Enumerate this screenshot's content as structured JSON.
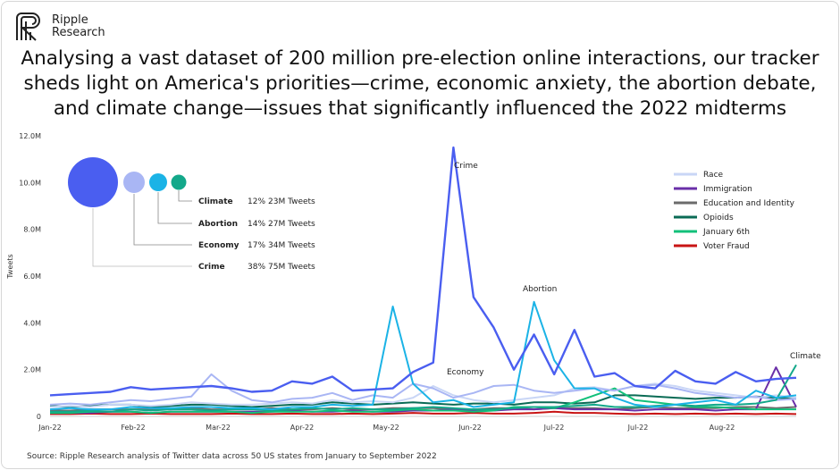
{
  "brand": {
    "line1": "Ripple",
    "line2": "Research"
  },
  "headline": "Analysing a vast dataset of 200 million pre-election online interactions, our tracker sheds light on America's priorities—crime, economic anxiety, the abortion debate, and climate change—issues that significantly influenced the 2022 midterms",
  "source": "Source: Ripple Research analysis of Twitter data across 50 US states from January to September 2022",
  "colors": {
    "crime": "#4a5ef0",
    "economy": "#a9b6f4",
    "abortion": "#1bb3e6",
    "climate": "#13a88a",
    "race": "#c9d6f6",
    "immigration": "#6a2fa8",
    "education": "#6b6b6b",
    "opioids": "#0a6b55",
    "january6": "#12c07a",
    "voterfraud": "#c81414"
  },
  "bubbles": [
    {
      "topic": "Climate",
      "pct": "12%",
      "tweets": "23M Tweets"
    },
    {
      "topic": "Abortion",
      "pct": "14%",
      "tweets": "27M Tweets"
    },
    {
      "topic": "Economy",
      "pct": "17%",
      "tweets": "34M Tweets"
    },
    {
      "topic": "Crime",
      "pct": "38%",
      "tweets": "75M Tweets"
    }
  ],
  "chart_data": {
    "type": "line",
    "ylabel": "Tweets",
    "xlabel": "",
    "ylim": [
      0,
      12000000
    ],
    "yticks": [
      "0",
      "2.0M",
      "4.0M",
      "6.0M",
      "8.0M",
      "10.0M",
      "12.0M"
    ],
    "xticks": [
      "Jan-22",
      "Feb-22",
      "Mar-22",
      "Apr-22",
      "May-22",
      "Jun-22",
      "Jul-22",
      "Jul-22",
      "Aug-22"
    ],
    "legend_position": "right",
    "annotations": [
      "Crime",
      "Abortion",
      "Economy",
      "Climate"
    ],
    "n_points": 38,
    "series": [
      {
        "name": "Crime",
        "key": "crime",
        "values": [
          0.9,
          0.95,
          1.0,
          1.05,
          1.25,
          1.15,
          1.2,
          1.25,
          1.3,
          1.2,
          1.05,
          1.1,
          1.5,
          1.4,
          1.7,
          1.1,
          1.15,
          1.2,
          1.9,
          2.3,
          11.5,
          5.1,
          3.8,
          2.0,
          3.5,
          1.8,
          3.7,
          1.7,
          1.85,
          1.3,
          1.2,
          1.95,
          1.5,
          1.4,
          1.9,
          1.5,
          1.6,
          1.65
        ]
      },
      {
        "name": "Economy",
        "key": "economy",
        "values": [
          0.5,
          0.55,
          0.5,
          0.6,
          0.7,
          0.65,
          0.75,
          0.85,
          1.8,
          1.1,
          0.7,
          0.6,
          0.75,
          0.8,
          1.0,
          0.7,
          0.9,
          0.8,
          1.4,
          1.2,
          0.8,
          1.0,
          1.3,
          1.35,
          1.1,
          1.0,
          1.1,
          1.2,
          1.1,
          1.3,
          1.35,
          1.2,
          1.0,
          0.9,
          0.8,
          0.85,
          0.7,
          0.75
        ]
      },
      {
        "name": "Abortion",
        "key": "abortion",
        "values": [
          0.3,
          0.35,
          0.3,
          0.3,
          0.4,
          0.35,
          0.35,
          0.4,
          0.4,
          0.35,
          0.35,
          0.3,
          0.4,
          0.4,
          0.5,
          0.45,
          0.5,
          4.7,
          1.4,
          0.6,
          0.7,
          0.4,
          0.5,
          0.6,
          4.9,
          2.4,
          1.2,
          1.2,
          0.8,
          0.5,
          0.4,
          0.5,
          0.6,
          0.7,
          0.5,
          1.1,
          0.8,
          0.9
        ]
      },
      {
        "name": "Climate",
        "key": "climate",
        "values": [
          0.2,
          0.2,
          0.25,
          0.2,
          0.3,
          0.25,
          0.3,
          0.3,
          0.25,
          0.3,
          0.3,
          0.25,
          0.3,
          0.35,
          0.3,
          0.35,
          0.3,
          0.3,
          0.35,
          0.4,
          0.35,
          0.3,
          0.3,
          0.35,
          0.4,
          0.4,
          0.45,
          0.5,
          0.4,
          0.4,
          0.45,
          0.5,
          0.45,
          0.5,
          0.5,
          0.55,
          0.7,
          2.2
        ]
      },
      {
        "name": "Race",
        "key": "race",
        "values": [
          0.4,
          0.45,
          0.4,
          0.5,
          0.5,
          0.45,
          0.5,
          0.6,
          0.55,
          0.5,
          0.5,
          0.55,
          0.6,
          0.55,
          0.7,
          0.6,
          0.65,
          0.6,
          0.8,
          1.3,
          0.9,
          0.7,
          0.6,
          0.7,
          0.8,
          0.9,
          1.2,
          1.25,
          1.1,
          1.3,
          1.4,
          1.3,
          1.1,
          1.0,
          0.9,
          0.8,
          0.9,
          0.8
        ]
      },
      {
        "name": "Immigration",
        "key": "immigration",
        "values": [
          0.15,
          0.15,
          0.15,
          0.2,
          0.2,
          0.15,
          0.2,
          0.2,
          0.2,
          0.2,
          0.2,
          0.2,
          0.25,
          0.2,
          0.2,
          0.25,
          0.2,
          0.2,
          0.25,
          0.25,
          0.3,
          0.25,
          0.25,
          0.3,
          0.3,
          0.35,
          0.3,
          0.3,
          0.3,
          0.25,
          0.3,
          0.3,
          0.3,
          0.25,
          0.3,
          0.3,
          2.1,
          0.4
        ]
      },
      {
        "name": "Education and Identity",
        "key": "education",
        "values": [
          0.25,
          0.25,
          0.3,
          0.3,
          0.3,
          0.3,
          0.3,
          0.35,
          0.3,
          0.3,
          0.3,
          0.35,
          0.3,
          0.3,
          0.35,
          0.3,
          0.3,
          0.35,
          0.35,
          0.35,
          0.3,
          0.3,
          0.35,
          0.35,
          0.3,
          0.35,
          0.35,
          0.35,
          0.3,
          0.35,
          0.4,
          0.35,
          0.35,
          0.35,
          0.4,
          0.4,
          0.35,
          0.4
        ]
      },
      {
        "name": "Opioids",
        "key": "opioids",
        "values": [
          0.45,
          0.4,
          0.45,
          0.5,
          0.5,
          0.4,
          0.45,
          0.5,
          0.5,
          0.45,
          0.4,
          0.45,
          0.5,
          0.5,
          0.6,
          0.55,
          0.5,
          0.55,
          0.6,
          0.55,
          0.5,
          0.55,
          0.55,
          0.5,
          0.6,
          0.6,
          0.55,
          0.6,
          0.9,
          0.9,
          0.85,
          0.8,
          0.75,
          0.8,
          0.8,
          0.85,
          0.8,
          0.75
        ]
      },
      {
        "name": "January 6th",
        "key": "january6",
        "values": [
          0.15,
          0.15,
          0.2,
          0.2,
          0.2,
          0.15,
          0.2,
          0.2,
          0.2,
          0.2,
          0.15,
          0.2,
          0.2,
          0.2,
          0.25,
          0.2,
          0.2,
          0.25,
          0.3,
          0.25,
          0.25,
          0.2,
          0.25,
          0.4,
          0.4,
          0.35,
          0.6,
          0.9,
          1.2,
          0.7,
          0.6,
          0.5,
          0.4,
          0.4,
          0.35,
          0.3,
          0.3,
          0.3
        ]
      },
      {
        "name": "Voter Fraud",
        "key": "voterfraud",
        "values": [
          0.1,
          0.1,
          0.12,
          0.1,
          0.1,
          0.12,
          0.1,
          0.1,
          0.1,
          0.12,
          0.1,
          0.1,
          0.12,
          0.1,
          0.1,
          0.12,
          0.1,
          0.12,
          0.15,
          0.12,
          0.12,
          0.15,
          0.12,
          0.12,
          0.15,
          0.2,
          0.15,
          0.15,
          0.12,
          0.1,
          0.12,
          0.1,
          0.12,
          0.1,
          0.12,
          0.1,
          0.12,
          0.1
        ]
      }
    ]
  }
}
